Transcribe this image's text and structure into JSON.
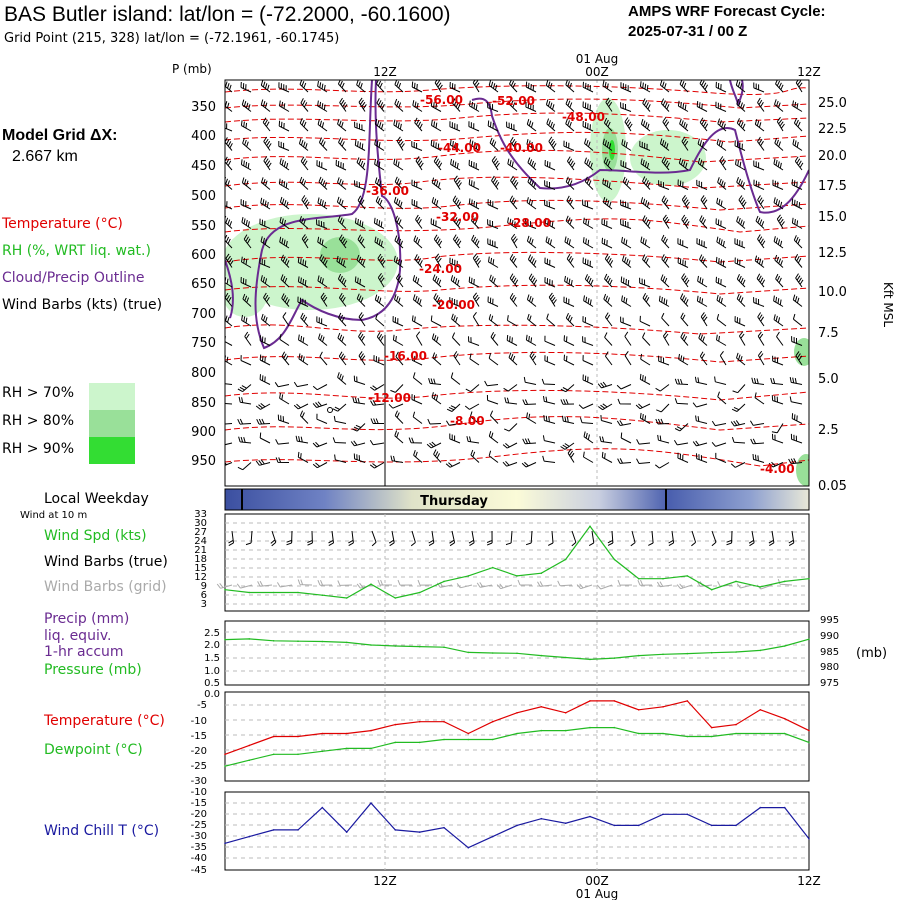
{
  "header": {
    "title": "BAS Butler island:  lat/lon = (-72.2000, -60.1600)",
    "subtitle": "Grid Point (215, 328) lat/lon = (-72.1961, -60.1745)",
    "cycle_line1": "AMPS WRF Forecast Cycle:",
    "cycle_line2": "2025-07-31 / 00  Z"
  },
  "left_panel": {
    "grid_label": "Model Grid ΔX:",
    "grid_value": "2.667 km",
    "legend_temperature": "Temperature (°C)",
    "legend_rh": "RH (%, WRT liq. wat.)",
    "legend_cloud": "Cloud/Precip Outline",
    "legend_wind": "Wind Barbs (kts) (true)",
    "rh_levels": [
      {
        "label": "RH > 70%",
        "color": "#ccf5cc"
      },
      {
        "label": "RH > 80%",
        "color": "#99e099"
      },
      {
        "label": "RH > 90%",
        "color": "#33dd33"
      }
    ],
    "weekday_label": "Local Weekday",
    "wind10m_label": "Wind at 10 m"
  },
  "colors": {
    "temperature": "#e00000",
    "rh": "#22bb22",
    "cloud": "#6a2b91",
    "wind": "#000000",
    "grid_barbs": "#aaaaaa",
    "windchill": "#1a1aa0"
  },
  "time_axis": {
    "top_ticks": [
      "12Z",
      "00Z",
      "12Z"
    ],
    "date_label": "01 Aug",
    "bottom_ticks": [
      "12Z",
      "00Z",
      "12Z"
    ]
  },
  "cross_section": {
    "pressure_unit": "P (mb)",
    "pressure_ticks": [
      "350",
      "400",
      "450",
      "500",
      "550",
      "600",
      "650",
      "700",
      "750",
      "800",
      "850",
      "900",
      "950"
    ],
    "height_ticks": [
      "25.0",
      "22.5",
      "20.0",
      "17.5",
      "15.0",
      "12.5",
      "10.0",
      "7.5",
      "5.0",
      "2.5",
      "0.05"
    ],
    "height_unit": "Kft MSL",
    "isotherm_labels": [
      "-56.00",
      "-52.00",
      "-48.00",
      "-44.00",
      "-40.00",
      "-36.00",
      "-32.00",
      "-28.00",
      "-24.00",
      "-20.00",
      "-16.00",
      "-12.00",
      "-8.00",
      "-4.00"
    ]
  },
  "weekday_bar": {
    "label": "Thursday"
  },
  "panel_wind": {
    "label_speed": "Wind Spd (kts)",
    "label_barbs_true": "Wind Barbs (true)",
    "label_barbs_grid": "Wind Barbs (grid)",
    "y_ticks": [
      "33",
      "30",
      "27",
      "24",
      "21",
      "18",
      "15",
      "12",
      "9",
      "6",
      "3"
    ]
  },
  "panel_precip": {
    "label_precip": "Precip (mm)",
    "label_liq": "liq. equiv.",
    "label_accum": "1-hr accum",
    "label_pressure": "Pressure (mb)",
    "left_ticks": [
      "2.5",
      "2.0",
      "1.5",
      "1.0",
      "0.5",
      "0.0"
    ],
    "right_ticks": [
      "995",
      "990",
      "985",
      "980",
      "975"
    ],
    "right_unit": "(mb)"
  },
  "panel_temp": {
    "label_temp": "Temperature (°C)",
    "label_dew": "Dewpoint (°C)",
    "y_ticks": [
      "-5",
      "-10",
      "-15",
      "-20",
      "-25",
      "-30"
    ]
  },
  "panel_chill": {
    "label": "Wind Chill T (°C)",
    "y_ticks": [
      "-10",
      "-15",
      "-20",
      "-25",
      "-30",
      "-35",
      "-40",
      "-45"
    ]
  },
  "chart_data": [
    {
      "type": "line",
      "title": "Wind Spd (kts)",
      "x": [
        0,
        3,
        6,
        9,
        12,
        15,
        18,
        21,
        24,
        27,
        30,
        33,
        36,
        39,
        42,
        45,
        48,
        51,
        54,
        57,
        60,
        63,
        66,
        69,
        72
      ],
      "series": [
        {
          "name": "Wind Spd (kts)",
          "values": [
            7,
            6,
            6,
            6,
            5,
            4,
            9,
            4,
            6,
            10,
            12,
            15,
            12,
            13,
            18,
            30,
            18,
            11,
            11,
            12,
            7,
            10,
            8,
            10,
            11
          ]
        }
      ],
      "ylim": [
        0,
        33
      ]
    },
    {
      "type": "line",
      "title": "Pressure (mb)",
      "x": [
        0,
        3,
        6,
        9,
        12,
        15,
        18,
        21,
        24,
        27,
        30,
        33,
        36,
        39,
        42,
        45,
        48,
        51,
        54,
        57,
        60,
        63,
        66,
        69,
        72
      ],
      "series": [
        {
          "name": "Pressure (mb)",
          "values": [
            989.2,
            989.4,
            988.8,
            988.7,
            988.6,
            988.3,
            987.5,
            987.2,
            987.0,
            986.8,
            985.2,
            985.0,
            984.9,
            984.2,
            983.6,
            983.0,
            983.4,
            984.2,
            984.6,
            984.8,
            985.1,
            985.3,
            985.8,
            987.2,
            989.3
          ]
        }
      ],
      "ylim": [
        975,
        995
      ]
    },
    {
      "type": "line",
      "title": "Temperature / Dewpoint (°C)",
      "x": [
        0,
        3,
        6,
        9,
        12,
        15,
        18,
        21,
        24,
        27,
        30,
        33,
        36,
        39,
        42,
        45,
        48,
        51,
        54,
        57,
        60,
        63,
        66,
        69,
        72
      ],
      "series": [
        {
          "name": "Temperature (°C)",
          "values": [
            -21,
            -18,
            -15,
            -15,
            -14,
            -14,
            -13,
            -11,
            -10,
            -10,
            -14,
            -10,
            -7,
            -5,
            -7,
            -3,
            -3,
            -6,
            -5,
            -3,
            -12,
            -11,
            -6,
            -9,
            -13
          ]
        },
        {
          "name": "Dewpoint (°C)",
          "values": [
            -25,
            -23,
            -21,
            -21,
            -20,
            -19,
            -19,
            -17,
            -17,
            -16,
            -16,
            -16,
            -14,
            -13,
            -13,
            -12,
            -12,
            -14,
            -14,
            -15,
            -15,
            -14,
            -14,
            -14,
            -17
          ]
        }
      ],
      "ylim": [
        -30,
        0
      ]
    },
    {
      "type": "line",
      "title": "Wind Chill T (°C)",
      "x": [
        0,
        3,
        6,
        9,
        12,
        15,
        18,
        21,
        24,
        27,
        30,
        33,
        36,
        39,
        42,
        45,
        48,
        51,
        54,
        57,
        60,
        63,
        66,
        69,
        72
      ],
      "series": [
        {
          "name": "Wind Chill T (°C)",
          "values": [
            -33,
            -30,
            -27,
            -27,
            -17,
            -28,
            -15,
            -27,
            -28,
            -26,
            -35,
            -30,
            -25,
            -22,
            -24,
            -21,
            -25,
            -25,
            -20,
            -20,
            -25,
            -25,
            -17,
            -17,
            -31
          ]
        }
      ],
      "ylim": [
        -45,
        -10
      ]
    }
  ]
}
